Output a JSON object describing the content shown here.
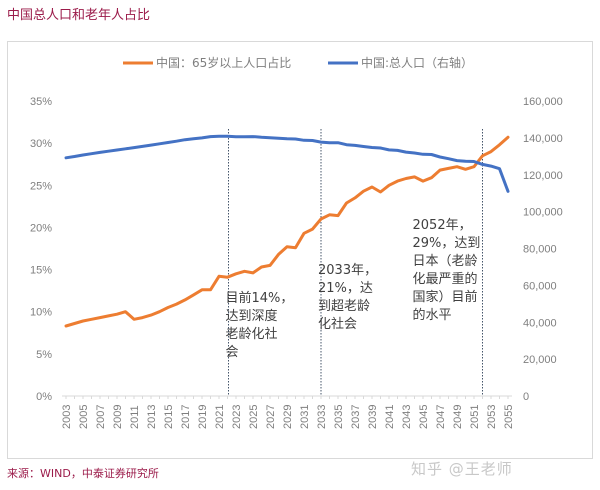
{
  "header": {
    "title": "中国总人口和老年人占比"
  },
  "footer": {
    "source": "来源：WIND，中泰证券研究所",
    "watermark": "知乎 @王老师"
  },
  "chart_data": {
    "type": "line",
    "title": "中国总人口和老年人占比",
    "xlabel": "",
    "ylabel": "",
    "grid": false,
    "legend_position": "top",
    "x": [
      2003,
      2004,
      2005,
      2006,
      2007,
      2008,
      2009,
      2010,
      2011,
      2012,
      2013,
      2014,
      2015,
      2016,
      2017,
      2018,
      2019,
      2020,
      2021,
      2022,
      2023,
      2024,
      2025,
      2026,
      2027,
      2028,
      2029,
      2030,
      2031,
      2032,
      2033,
      2034,
      2035,
      2036,
      2037,
      2038,
      2039,
      2040,
      2041,
      2042,
      2043,
      2044,
      2045,
      2046,
      2047,
      2048,
      2049,
      2050,
      2051,
      2052,
      2053,
      2054,
      2055
    ],
    "x_tick_labels": [
      "2003",
      "2005",
      "2007",
      "2009",
      "2011",
      "2013",
      "2015",
      "2017",
      "2019",
      "2021",
      "2023",
      "2025",
      "2027",
      "2029",
      "2031",
      "2033",
      "2035",
      "2037",
      "2039",
      "2041",
      "2043",
      "2045",
      "2047",
      "2049",
      "2051",
      "2053",
      "2055"
    ],
    "y_left": {
      "range": [
        0,
        35
      ],
      "ticks": [
        "0%",
        "5%",
        "10%",
        "15%",
        "20%",
        "25%",
        "30%",
        "35%"
      ],
      "tick_values": [
        0,
        5,
        10,
        15,
        20,
        25,
        30,
        35
      ]
    },
    "y_right": {
      "range": [
        0,
        160000
      ],
      "ticks": [
        "0",
        "20,000",
        "40,000",
        "60,000",
        "80,000",
        "100,000",
        "120,000",
        "140,000",
        "160,000"
      ],
      "tick_values": [
        0,
        20000,
        40000,
        60000,
        80000,
        100000,
        120000,
        140000,
        160000
      ]
    },
    "series": [
      {
        "name": "中国：65岁以上人口占比",
        "axis": "left",
        "color": "#ed7d31",
        "values": [
          8.3,
          8.6,
          8.9,
          9.1,
          9.3,
          9.5,
          9.7,
          10.0,
          9.1,
          9.3,
          9.6,
          10.0,
          10.5,
          10.9,
          11.4,
          12.0,
          12.6,
          12.6,
          14.2,
          14.1,
          14.5,
          14.8,
          14.6,
          15.3,
          15.5,
          16.8,
          17.7,
          17.6,
          19.3,
          19.8,
          21.0,
          21.5,
          21.4,
          22.9,
          23.5,
          24.3,
          24.8,
          24.2,
          25.0,
          25.5,
          25.8,
          26.0,
          25.5,
          25.9,
          26.8,
          27.0,
          27.2,
          26.9,
          27.2,
          28.5,
          29.0,
          29.8,
          30.7
        ]
      },
      {
        "name": "中国:总人口（右轴）",
        "axis": "right",
        "color": "#4472c4",
        "values": [
          129200,
          129900,
          130700,
          131400,
          132100,
          132800,
          133400,
          134100,
          134700,
          135400,
          136100,
          136800,
          137500,
          138200,
          139000,
          139500,
          140000,
          140700,
          140900,
          140900,
          140600,
          140600,
          140700,
          140300,
          140100,
          139800,
          139500,
          139400,
          138700,
          138600,
          137700,
          137400,
          137400,
          136300,
          135900,
          135300,
          134800,
          134500,
          133500,
          133200,
          132300,
          131800,
          131100,
          131000,
          129600,
          128700,
          127700,
          127300,
          127200,
          125600,
          124700,
          123300,
          111000
        ]
      }
    ],
    "annotations": [
      {
        "year": 2022,
        "lines": [
          "目前14%，",
          "达到深度",
          "老龄化社",
          "会"
        ]
      },
      {
        "year": 2033,
        "lines": [
          "2033年，",
          "21%，达",
          "到超老龄",
          "化社会"
        ]
      },
      {
        "year": 2052,
        "lines": [
          "2052年，",
          "29%，达到",
          "日本（老龄",
          "化最严重的",
          "国家）目前",
          "的水平"
        ]
      }
    ]
  }
}
